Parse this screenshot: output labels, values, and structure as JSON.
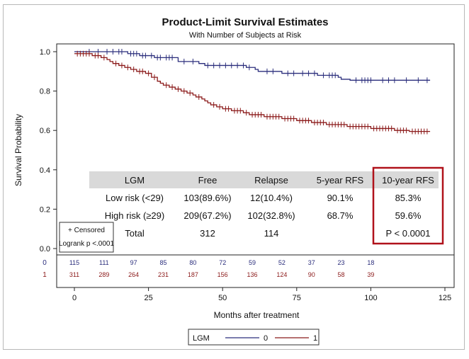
{
  "chart_data": {
    "type": "line",
    "title": "Product-Limit Survival Estimates",
    "subtitle": "With Number of Subjects at Risk",
    "xlabel": "Months after treatment",
    "ylabel": "Survival Probability",
    "xlim": [
      0,
      125
    ],
    "ylim": [
      0,
      1
    ],
    "x_ticks": [
      0,
      25,
      50,
      75,
      100,
      125
    ],
    "y_ticks": [
      "0.0",
      "0.2",
      "0.4",
      "0.6",
      "0.8",
      "1.0"
    ],
    "colors": {
      "group0": "#2b2e7c",
      "group1": "#8b1a1a",
      "highlight": "#b0121b",
      "header_bg": "#d9d9d9"
    },
    "series": [
      {
        "name": "0",
        "color": "#2b2e7c",
        "steps": [
          [
            0,
            1.0
          ],
          [
            18,
            0.99
          ],
          [
            22,
            0.98
          ],
          [
            27,
            0.97
          ],
          [
            35,
            0.95
          ],
          [
            42,
            0.94
          ],
          [
            44,
            0.93
          ],
          [
            58,
            0.92
          ],
          [
            61,
            0.91
          ],
          [
            62,
            0.9
          ],
          [
            70,
            0.89
          ],
          [
            82,
            0.88
          ],
          [
            89,
            0.87
          ],
          [
            90,
            0.86
          ],
          [
            93,
            0.855
          ],
          [
            120,
            0.855
          ]
        ],
        "censored": [
          5,
          8,
          11,
          13,
          15,
          16,
          19,
          20,
          21,
          23,
          24,
          26,
          28,
          29,
          31,
          32,
          33,
          37,
          40,
          45,
          47,
          49,
          51,
          53,
          55,
          57,
          59,
          65,
          67,
          72,
          74,
          77,
          79,
          81,
          84,
          86,
          87,
          88,
          95,
          97,
          98,
          99,
          100,
          104,
          106,
          108,
          112,
          116,
          119
        ]
      },
      {
        "name": "1",
        "color": "#8b1a1a",
        "steps": [
          [
            0,
            0.99
          ],
          [
            6,
            0.98
          ],
          [
            9,
            0.97
          ],
          [
            11,
            0.96
          ],
          [
            12,
            0.95
          ],
          [
            13,
            0.94
          ],
          [
            15,
            0.93
          ],
          [
            17,
            0.92
          ],
          [
            19,
            0.91
          ],
          [
            21,
            0.9
          ],
          [
            24,
            0.89
          ],
          [
            26,
            0.87
          ],
          [
            28,
            0.85
          ],
          [
            29,
            0.84
          ],
          [
            30,
            0.83
          ],
          [
            32,
            0.82
          ],
          [
            34,
            0.81
          ],
          [
            36,
            0.8
          ],
          [
            38,
            0.79
          ],
          [
            40,
            0.78
          ],
          [
            41,
            0.77
          ],
          [
            43,
            0.76
          ],
          [
            44,
            0.75
          ],
          [
            45,
            0.74
          ],
          [
            46,
            0.73
          ],
          [
            48,
            0.72
          ],
          [
            50,
            0.71
          ],
          [
            53,
            0.7
          ],
          [
            57,
            0.69
          ],
          [
            59,
            0.68
          ],
          [
            64,
            0.67
          ],
          [
            70,
            0.66
          ],
          [
            75,
            0.65
          ],
          [
            80,
            0.64
          ],
          [
            85,
            0.63
          ],
          [
            92,
            0.62
          ],
          [
            100,
            0.61
          ],
          [
            108,
            0.6
          ],
          [
            113,
            0.595
          ],
          [
            120,
            0.595
          ]
        ],
        "censored": [
          1,
          2,
          3,
          4,
          5,
          7,
          8,
          10,
          14,
          16,
          18,
          20,
          22,
          23,
          25,
          27,
          31,
          33,
          35,
          37,
          39,
          42,
          47,
          49,
          51,
          52,
          54,
          55,
          56,
          58,
          60,
          61,
          62,
          63,
          65,
          66,
          67,
          68,
          69,
          71,
          72,
          73,
          74,
          76,
          77,
          78,
          79,
          81,
          82,
          83,
          84,
          86,
          87,
          88,
          89,
          90,
          91,
          93,
          94,
          95,
          96,
          97,
          98,
          99,
          101,
          102,
          103,
          104,
          105,
          106,
          107,
          109,
          110,
          111,
          112,
          114,
          115,
          116,
          117,
          118,
          119
        ]
      }
    ],
    "at_risk": {
      "x": [
        0,
        10,
        20,
        30,
        40,
        50,
        60,
        70,
        80,
        90,
        100
      ],
      "rows": [
        {
          "group": "0",
          "values": [
            "115",
            "111",
            "97",
            "85",
            "80",
            "72",
            "59",
            "52",
            "37",
            "23",
            "18"
          ]
        },
        {
          "group": "1",
          "values": [
            "311",
            "289",
            "264",
            "231",
            "187",
            "156",
            "136",
            "124",
            "90",
            "58",
            "39"
          ]
        }
      ]
    },
    "censor_box": {
      "line1": "+ Censored",
      "line2": "Logrank p <.0001"
    },
    "legend": {
      "title": "LGM",
      "items": [
        "0",
        "1"
      ],
      "position": "bottom-center"
    }
  },
  "table": {
    "headers": [
      "LGM",
      "Free",
      "Relapse",
      "5-year RFS",
      "10-year RFS"
    ],
    "rows": [
      [
        "Low risk (<29)",
        "103(89.6%)",
        "12(10.4%)",
        "90.1%",
        "85.3%"
      ],
      [
        "High risk (≥29)",
        "209(67.2%)",
        "102(32.8%)",
        "68.7%",
        "59.6%"
      ],
      [
        "Total",
        "312",
        "114",
        "",
        "P < 0.0001"
      ]
    ]
  }
}
